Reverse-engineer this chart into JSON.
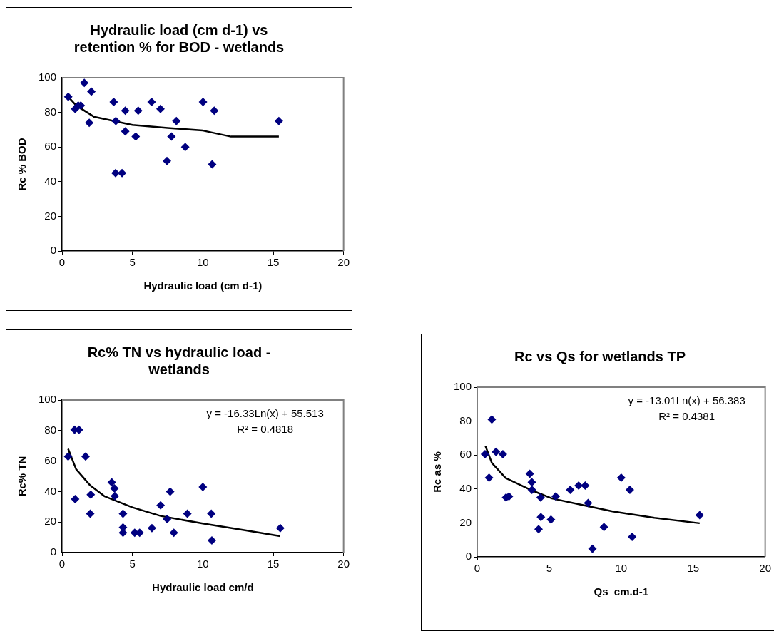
{
  "chart_data": [
    {
      "type": "scatter",
      "title": "Hydraulic load (cm d-1) vs retention % for BOD - wetlands",
      "xlabel": "Hydraulic load (cm d-1)",
      "ylabel": "Rc % BOD",
      "xlim": [
        0,
        20
      ],
      "xticks": [
        0,
        5,
        10,
        15,
        20
      ],
      "ylim": [
        0,
        100
      ],
      "yticks": [
        0,
        20,
        40,
        60,
        80,
        100
      ],
      "grid": false,
      "legend": false,
      "marker": "diamond",
      "series": [
        {
          "color": "#000080",
          "x": [
            0.44,
            0.93,
            1.15,
            1.33,
            1.58,
            2.08,
            1.93,
            3.67,
            3.82,
            3.8,
            4.26,
            4.49,
            4.49,
            5.41,
            5.23,
            6.36,
            6.99,
            7.45,
            7.77,
            8.12,
            8.75,
            10.01,
            10.81,
            10.66,
            15.4
          ],
          "values": [
            89,
            82,
            84,
            84,
            97,
            92,
            74,
            86,
            75,
            45,
            45,
            81,
            69,
            81,
            66,
            86,
            82,
            52,
            66,
            75,
            60,
            86,
            81,
            50,
            75
          ]
        },
        {
          "type": "line",
          "marker": "none",
          "line_style": "solid",
          "color": "#000000",
          "x": [
            0.44,
            1,
            2.26,
            5,
            7.5,
            10,
            12,
            15.4
          ],
          "values": [
            89,
            84,
            77.5,
            72.7,
            71,
            69.5,
            66,
            66
          ]
        }
      ]
    },
    {
      "type": "scatter",
      "title": "Rc% TN vs hydraulic load - wetlands",
      "xlabel": "Hydraulic load cm/d",
      "ylabel": "Rc% TN",
      "xlim": [
        0,
        20
      ],
      "xticks": [
        0,
        5,
        10,
        15,
        20
      ],
      "ylim": [
        0,
        100
      ],
      "yticks": [
        0,
        20,
        40,
        60,
        80,
        100
      ],
      "grid": false,
      "legend": false,
      "marker": "diamond",
      "annotations": [
        "y = -16.33Ln(x) + 55.513",
        "R² = 0.4818"
      ],
      "series": [
        {
          "color": "#000080",
          "x": [
            0.43,
            0.89,
            1.2,
            0.93,
            1.67,
            2.04,
            2.0,
            3.53,
            3.72,
            3.75,
            4.33,
            4.33,
            4.33,
            5.16,
            5.51,
            6.38,
            7.0,
            7.46,
            7.68,
            7.94,
            8.9,
            10.0,
            10.6,
            10.64,
            15.5
          ],
          "values": [
            63,
            80.5,
            80.5,
            35,
            63,
            38,
            25.5,
            46,
            42,
            37,
            25.5,
            16.5,
            13,
            13,
            13,
            16,
            31,
            22,
            40,
            13,
            25.5,
            43,
            25.5,
            8,
            16
          ]
        },
        {
          "type": "line",
          "marker": "none",
          "line_style": "solid",
          "color": "#000000",
          "x": [
            0.43,
            1,
            2,
            3,
            5,
            7,
            10,
            13,
            15.5
          ],
          "values": [
            68,
            54.6,
            44,
            37,
            29.6,
            24,
            19,
            14.6,
            10.7
          ]
        }
      ]
    },
    {
      "type": "scatter",
      "title": "Rc vs Qs for wetlands TP",
      "xlabel": "Qs  cm.d-1",
      "ylabel": "Rc as %",
      "xlim": [
        0,
        20
      ],
      "xticks": [
        0,
        5,
        10,
        15,
        20
      ],
      "ylim": [
        0,
        100
      ],
      "yticks": [
        0,
        20,
        40,
        60,
        80,
        100
      ],
      "grid": false,
      "legend": false,
      "marker": "diamond",
      "annotations": [
        "y = -13.01Ln(x) + 56.383",
        "R² = 0.4381"
      ],
      "series": [
        {
          "color": "#000080",
          "x": [
            0.54,
            0.82,
            1.01,
            1.3,
            1.78,
            2.0,
            2.2,
            3.65,
            3.79,
            3.8,
            4.4,
            4.42,
            4.26,
            5.12,
            5.45,
            6.46,
            7.04,
            7.5,
            7.7,
            8.0,
            8.8,
            10.0,
            10.6,
            10.76,
            15.45
          ],
          "values": [
            60.5,
            46.6,
            81,
            61.9,
            60.5,
            35,
            35.6,
            49,
            44,
            39.5,
            35,
            23.4,
            16.3,
            22,
            35.6,
            39.5,
            42,
            42,
            31.7,
            4.7,
            17.5,
            46.6,
            39.5,
            11.8,
            24.6
          ]
        },
        {
          "type": "line",
          "marker": "none",
          "line_style": "solid",
          "color": "#000000",
          "x": [
            0.57,
            1.01,
            1.97,
            3.69,
            5.2,
            7.3,
            9.4,
            12.3,
            15.45
          ],
          "values": [
            65.3,
            55.4,
            46.5,
            39.5,
            34.4,
            30.6,
            26.8,
            23,
            19.8
          ]
        }
      ]
    }
  ]
}
